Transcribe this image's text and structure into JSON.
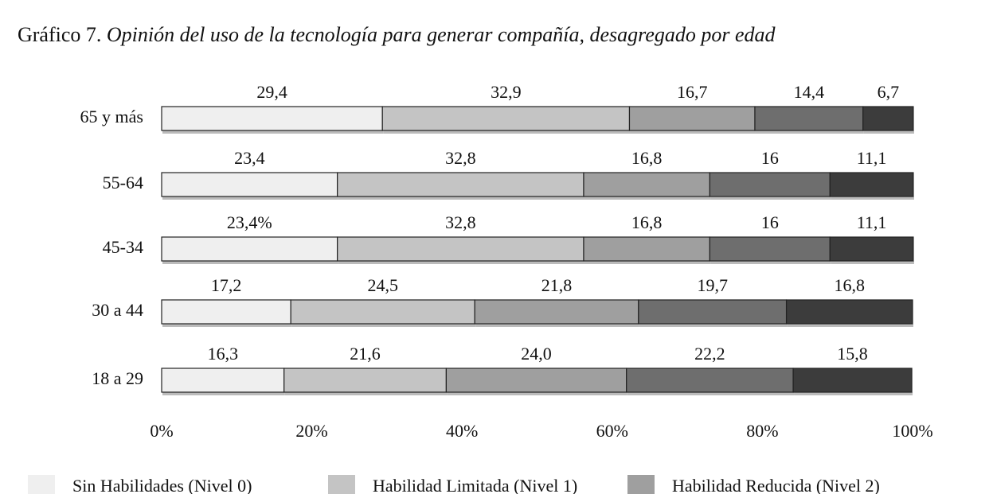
{
  "chart_data": {
    "type": "stacked-bar-horizontal",
    "title_number": "Gráfico 7.",
    "title": "Opinión del uso de la tecnología para generar compañía, desagregado por edad",
    "categories": [
      "65 y más",
      "55-64",
      "45-34",
      "30 a 44",
      "18 a 29"
    ],
    "series": [
      {
        "name": "Sin Habilidades (Nivel 0)",
        "color": "#efefef",
        "values": [
          29.4,
          23.4,
          23.4,
          17.2,
          16.3
        ],
        "value_labels": [
          "29,4",
          "23,4",
          "23,4%",
          "17,2",
          "16,3"
        ]
      },
      {
        "name": "Habilidad Limitada (Nivel 1)",
        "color": "#c4c4c4",
        "values": [
          32.9,
          32.8,
          32.8,
          24.5,
          21.6
        ],
        "value_labels": [
          "32,9",
          "32,8",
          "32,8",
          "24,5",
          "21,6"
        ]
      },
      {
        "name": "Habilidad Reducida (Nivel 2)",
        "color": "#9f9f9f",
        "values": [
          16.7,
          16.8,
          16.8,
          21.8,
          24.0
        ],
        "value_labels": [
          "16,7",
          "16,8",
          "16,8",
          "21,8",
          "24,0"
        ]
      },
      {
        "color": "#6e6e6e",
        "values": [
          14.4,
          16,
          16,
          19.7,
          22.2
        ],
        "value_labels": [
          "14,4",
          "16",
          "16",
          "19,7",
          "22,2"
        ]
      },
      {
        "color": "#3c3c3c",
        "values": [
          6.7,
          11.1,
          11.1,
          16.8,
          15.8
        ],
        "value_labels": [
          "6,7",
          "11,1",
          "11,1",
          "16,8",
          "15,8"
        ]
      }
    ],
    "xlim": [
      0,
      100
    ],
    "xticks": [
      {
        "value": 0,
        "label": "0%"
      },
      {
        "value": 20,
        "label": "20%"
      },
      {
        "value": 40,
        "label": "40%"
      },
      {
        "value": 60,
        "label": "60%"
      },
      {
        "value": 80,
        "label": "80%"
      },
      {
        "value": 100,
        "label": "100%"
      }
    ],
    "grid": false
  }
}
